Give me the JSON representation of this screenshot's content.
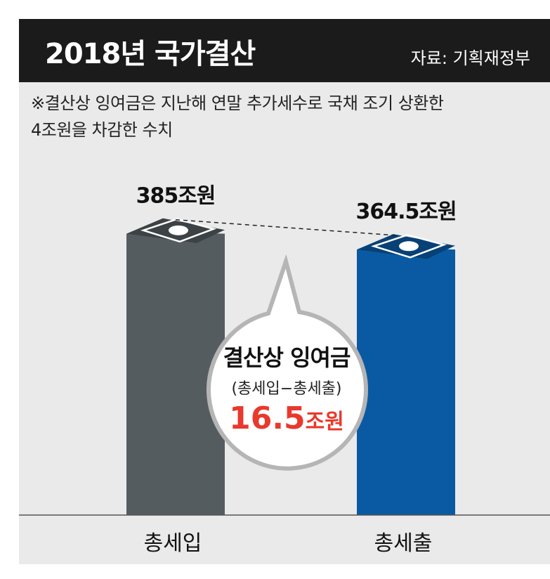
{
  "header": {
    "title": "2018년 국가결산",
    "source": "자료: 기획재정부"
  },
  "note": {
    "line1": "※결산상 잉여금은 지난해 연말 추가세수로 국채 조기 상환한",
    "line2": "4조원을 차감한 수치"
  },
  "chart_data": {
    "type": "bar",
    "categories": [
      "총세입",
      "총세출"
    ],
    "values": [
      385,
      364.5
    ],
    "value_labels": [
      "385조원",
      "364.5조원"
    ],
    "colors": [
      "#545c60",
      "#0a5aa3"
    ],
    "ylim": [
      0,
      400
    ]
  },
  "callout": {
    "title": "결산상 잉여금",
    "subtitle": "(총세입−총세출)",
    "value_number": "16.5",
    "value_unit": "조원",
    "value_color": "#e8392c"
  }
}
